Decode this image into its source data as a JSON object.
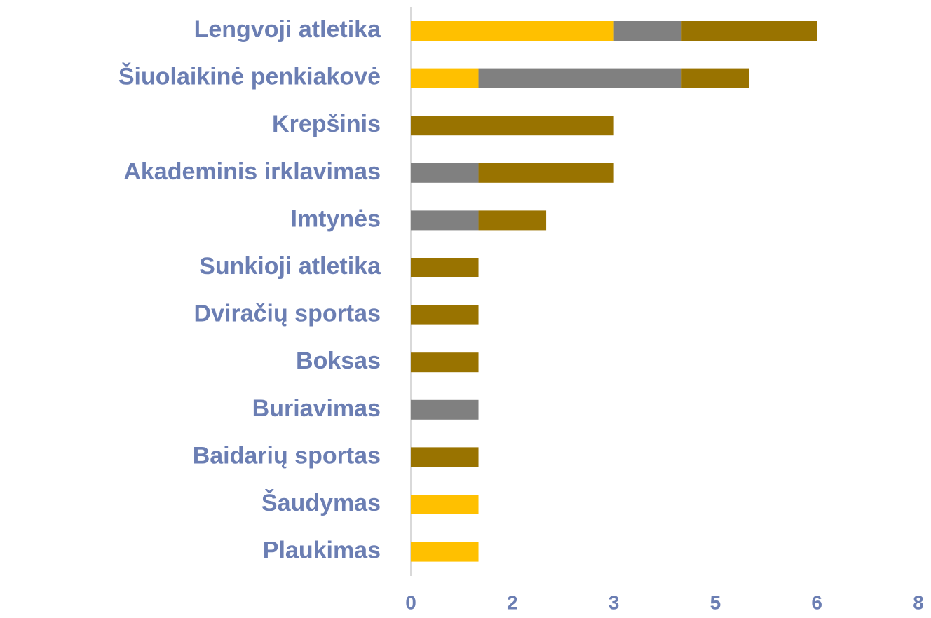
{
  "chart_data": {
    "type": "stacked_barh",
    "categories": [
      "Lengvoji atletika",
      "Šiuolaikinė penkiakovė",
      "Krepšinis",
      "Akademinis irklavimas",
      "Imtynės",
      "Sunkioji atletika",
      "Dviračių sportas",
      "Boksas",
      "Buriavimas",
      "Baidarių sportas",
      "Šaudymas",
      "Plaukimas"
    ],
    "series": [
      {
        "color": "#ffc000",
        "values": [
          3,
          1,
          0,
          0,
          0,
          0,
          0,
          0,
          0,
          0,
          1,
          1
        ]
      },
      {
        "color": "#808080",
        "values": [
          1,
          3,
          0,
          1,
          1,
          0,
          0,
          0,
          1,
          0,
          0,
          0
        ]
      },
      {
        "color": "#997300",
        "values": [
          2,
          1,
          3,
          2,
          1,
          1,
          1,
          1,
          0,
          1,
          0,
          0
        ]
      }
    ],
    "xlim": [
      0,
      7.5
    ],
    "xticks": [
      0,
      {
        "value": 1.5,
        "label": "2"
      },
      3,
      {
        "value": 4.5,
        "label": "5"
      },
      6,
      {
        "value": 7.5,
        "label": "8"
      }
    ]
  }
}
